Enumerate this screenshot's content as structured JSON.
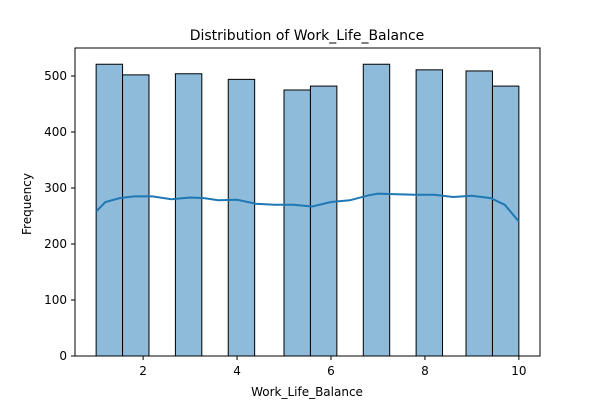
{
  "chart_data": {
    "type": "bar",
    "title": "Distribution of Work_Life_Balance",
    "xlabel": "Work_Life_Balance",
    "ylabel": "Frequency",
    "xlim": [
      0.55,
      10.45
    ],
    "ylim": [
      0,
      550
    ],
    "xticks": [
      2,
      4,
      6,
      8,
      10
    ],
    "yticks": [
      0,
      100,
      200,
      300,
      400,
      500
    ],
    "bins": [
      {
        "x0": 1.0,
        "x1": 1.5625,
        "count": 521
      },
      {
        "x0": 1.5625,
        "x1": 2.125,
        "count": 502
      },
      {
        "x0": 2.6875,
        "x1": 3.25,
        "count": 504
      },
      {
        "x0": 3.8125,
        "x1": 4.375,
        "count": 494
      },
      {
        "x0": 5.0,
        "x1": 5.5625,
        "count": 475
      },
      {
        "x0": 5.5625,
        "x1": 6.125,
        "count": 482
      },
      {
        "x0": 6.6875,
        "x1": 7.25,
        "count": 521
      },
      {
        "x0": 7.8125,
        "x1": 8.375,
        "count": 511
      },
      {
        "x0": 8.875,
        "x1": 9.4375,
        "count": 509
      },
      {
        "x0": 9.4375,
        "x1": 10.0,
        "count": 482
      }
    ],
    "kde": {
      "x": [
        1.0,
        1.2,
        1.5,
        1.8,
        2.2,
        2.6,
        3.0,
        3.3,
        3.6,
        4.0,
        4.4,
        4.8,
        5.2,
        5.6,
        6.0,
        6.4,
        6.8,
        7.0,
        7.4,
        7.8,
        8.2,
        8.6,
        9.0,
        9.4,
        9.7,
        10.0
      ],
      "y": [
        258,
        275,
        282,
        285,
        285,
        280,
        283,
        282,
        278,
        279,
        272,
        270,
        270,
        267,
        275,
        278,
        287,
        290,
        289,
        288,
        288,
        284,
        286,
        282,
        270,
        240
      ]
    },
    "grid": false,
    "colors": {
      "bar_fill": "#8fbbda",
      "bar_edge": "#000000",
      "kde_line": "#1f77b4"
    }
  }
}
